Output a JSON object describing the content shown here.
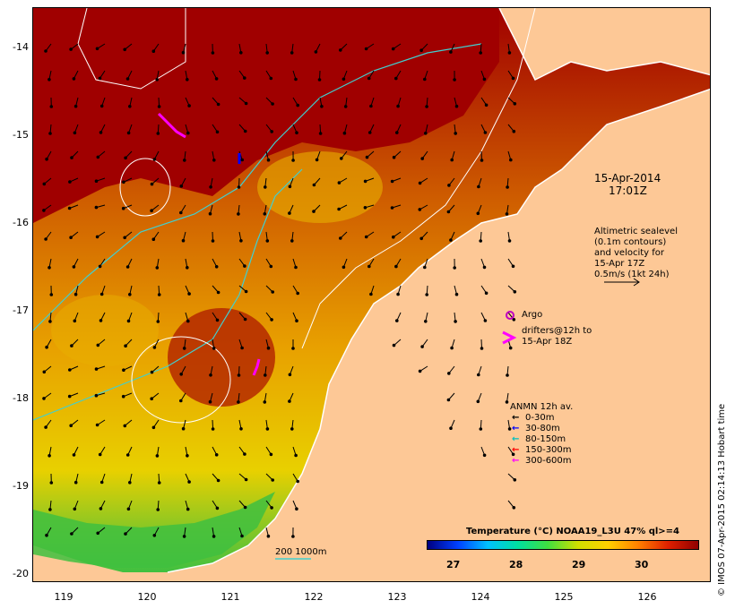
{
  "map": {
    "annotation_date": "15-Apr-2014",
    "annotation_time": "17:01Z",
    "altimetry_lines": [
      "Altimetric sealevel",
      "(0.1m contours)",
      "and velocity for",
      "15-Apr 17Z",
      "0.5m/s (1kt 24h)"
    ],
    "argo_label": "Argo",
    "drifters_lines": [
      "drifters@12h to",
      "15-Apr 18Z"
    ],
    "anmn_title": "ANMN 12h av.",
    "anmn_legend": [
      {
        "label": "0-30m",
        "color": "#000000"
      },
      {
        "label": "30-80m",
        "color": "#0000ff"
      },
      {
        "label": "80-150m",
        "color": "#00c0c0"
      },
      {
        "label": "150-300m",
        "color": "#ff0000"
      },
      {
        "label": "300-600m",
        "color": "#ff00ff"
      }
    ],
    "bathy_label": "200  1000m",
    "colorbar_title": "Temperature (°C) NOAA19_L3U 47% ql>=4",
    "colorbar_ticks": [
      "27",
      "28",
      "29",
      "30"
    ],
    "y_ticks": [
      "-14",
      "-15",
      "-16",
      "-17",
      "-18",
      "-19",
      "-20"
    ],
    "x_ticks": [
      "119",
      "120",
      "121",
      "122",
      "123",
      "124",
      "125",
      "126"
    ],
    "credit": "© IMOS 07-Apr-2015 02:14:13 Hobart time",
    "colors": {
      "land": "#fdc896",
      "hot": "#a00000",
      "coastline": "#ffffff",
      "cyan": "#40d0d0"
    }
  }
}
